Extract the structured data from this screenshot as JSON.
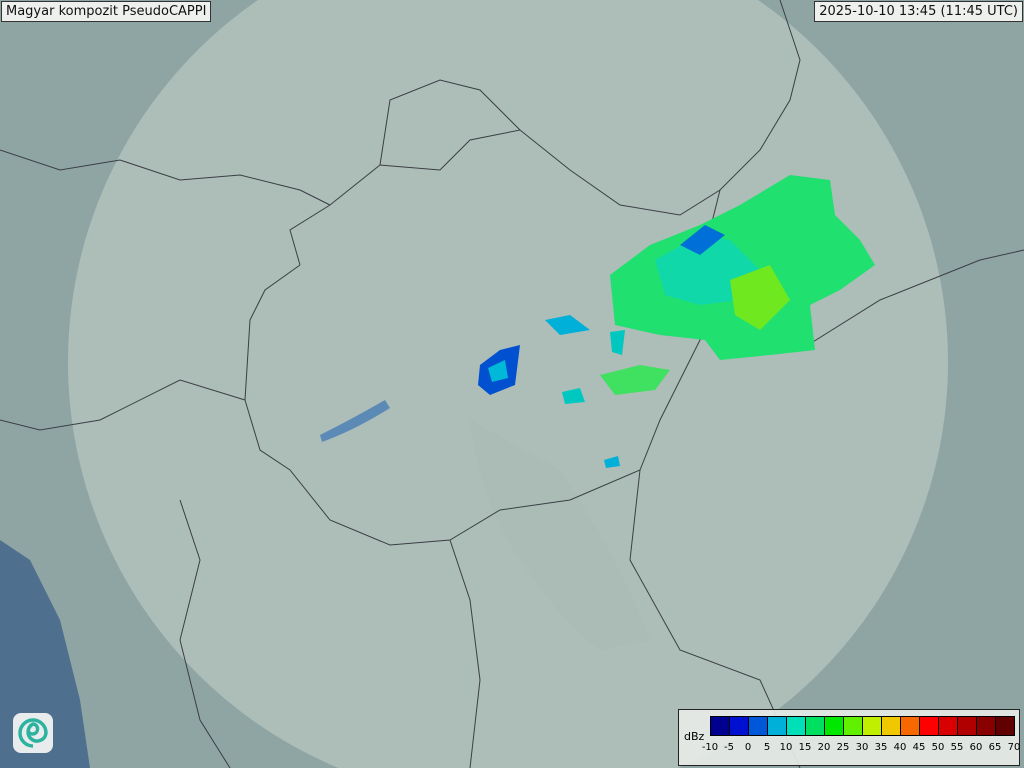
{
  "title": "Magyar kompozit  PseudoCAPPI",
  "timestamp": "2025-10-10 13:45 (11:45 UTC)",
  "logo": "swirl-logo-icon",
  "legend": {
    "unit": "dBz",
    "ticks": [
      "-10",
      "-5",
      "0",
      "5",
      "10",
      "15",
      "20",
      "25",
      "30",
      "35",
      "40",
      "45",
      "50",
      "55",
      "60",
      "65",
      "70"
    ],
    "colors": [
      "#000090",
      "#0010d0",
      "#0058d8",
      "#00b0d8",
      "#00e0b8",
      "#00e060",
      "#00e800",
      "#60f000",
      "#c0f000",
      "#f0c800",
      "#f86800",
      "#ff0000",
      "#d80000",
      "#b00000",
      "#880000",
      "#600000"
    ]
  }
}
